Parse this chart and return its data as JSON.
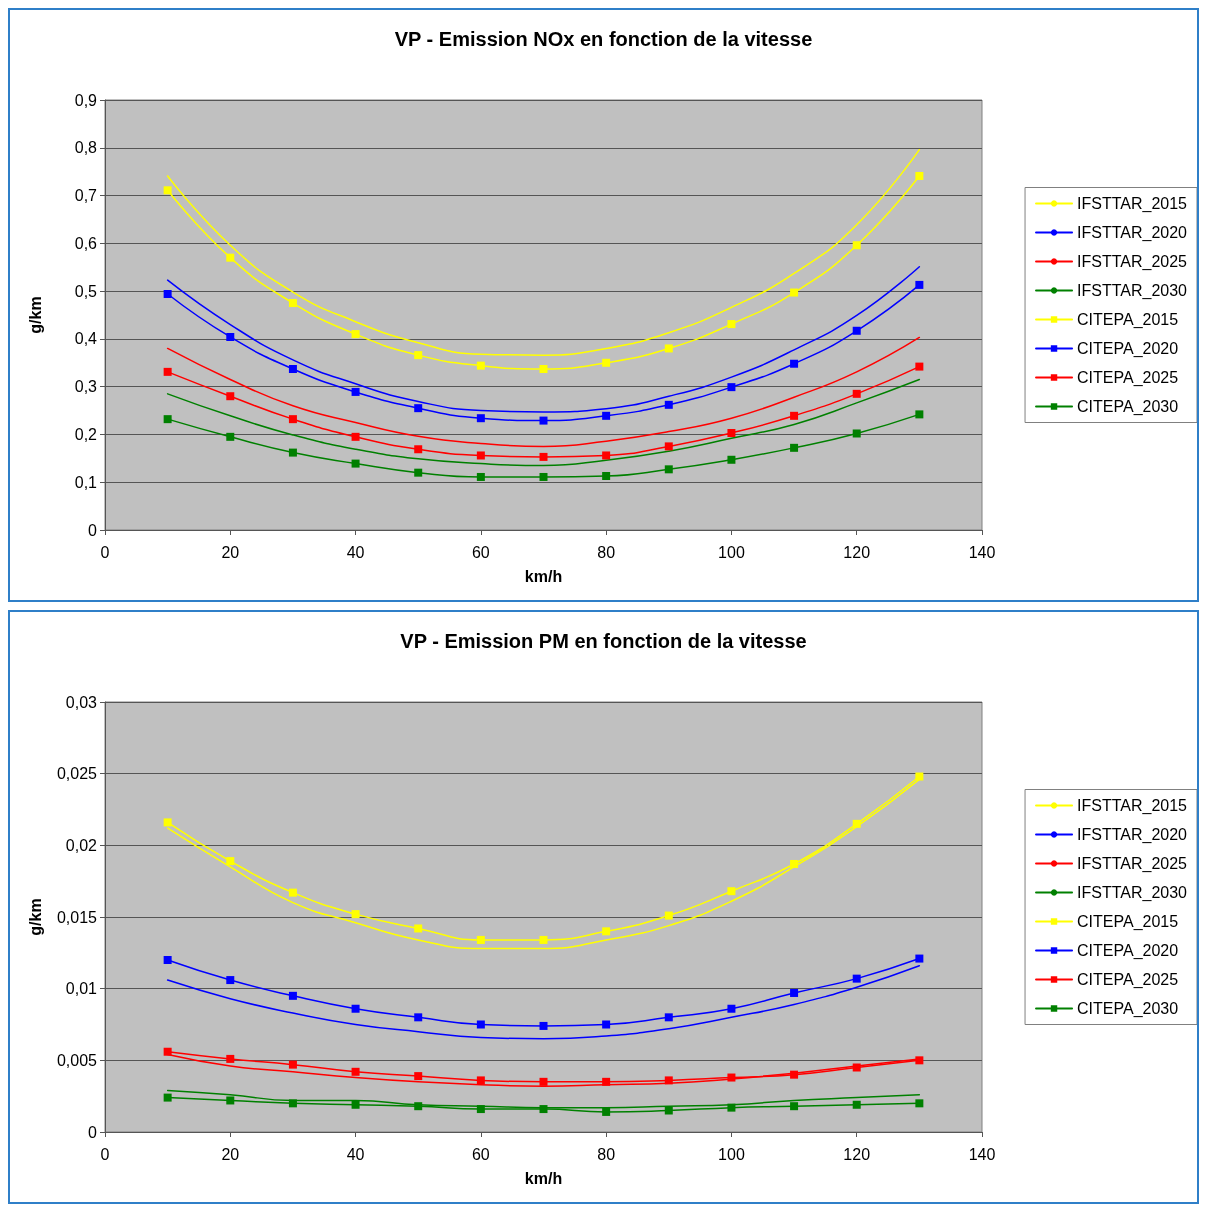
{
  "chart_data": [
    {
      "type": "line",
      "title": "VP - Emission NOx en fonction de la vitesse",
      "xlabel": "km/h",
      "ylabel": "g/km",
      "x": [
        10,
        20,
        30,
        40,
        50,
        60,
        70,
        80,
        90,
        100,
        110,
        120,
        130
      ],
      "xlim": [
        0,
        140
      ],
      "xticks": [
        0,
        20,
        40,
        60,
        80,
        100,
        120,
        140
      ],
      "ylim": [
        0,
        0.9
      ],
      "yticks": [
        0,
        {
          "value": 0.1,
          "label": "0,1"
        },
        {
          "value": 0.2,
          "label": "0,2"
        },
        {
          "value": 0.3,
          "label": "0,3"
        },
        {
          "value": 0.4,
          "label": "0,4"
        },
        {
          "value": 0.5,
          "label": "0,5"
        },
        {
          "value": 0.6,
          "label": "0,6"
        },
        {
          "value": 0.7,
          "label": "0,7"
        },
        {
          "value": 0.8,
          "label": "0,8"
        },
        {
          "value": 0.9,
          "label": "0,9"
        }
      ],
      "grid": "y",
      "legend": "right",
      "series": [
        {
          "name": "IFSTTAR_2015",
          "color": "#ffff00",
          "marker": "none",
          "values": [
            0.741,
            0.596,
            0.498,
            0.436,
            0.392,
            0.368,
            0.366,
            0.38,
            0.413,
            0.466,
            0.537,
            0.639,
            0.796
          ]
        },
        {
          "name": "IFSTTAR_2020",
          "color": "#0000ff",
          "marker": "none",
          "values": [
            0.523,
            0.43,
            0.356,
            0.306,
            0.269,
            0.25,
            0.247,
            0.254,
            0.28,
            0.32,
            0.377,
            0.449,
            0.551
          ]
        },
        {
          "name": "IFSTTAR_2025",
          "color": "#ff0000",
          "marker": "none",
          "values": [
            0.38,
            0.315,
            0.26,
            0.225,
            0.196,
            0.181,
            0.175,
            0.186,
            0.206,
            0.234,
            0.278,
            0.331,
            0.403
          ]
        },
        {
          "name": "IFSTTAR_2030",
          "color": "#008000",
          "marker": "none",
          "values": [
            0.285,
            0.239,
            0.199,
            0.169,
            0.149,
            0.139,
            0.135,
            0.146,
            0.165,
            0.192,
            0.221,
            0.266,
            0.315
          ]
        },
        {
          "name": "CITEPA_2015",
          "color": "#ffff00",
          "marker": "square",
          "values": [
            0.711,
            0.57,
            0.475,
            0.41,
            0.366,
            0.344,
            0.337,
            0.35,
            0.38,
            0.431,
            0.497,
            0.596,
            0.741
          ]
        },
        {
          "name": "CITEPA_2020",
          "color": "#0000ff",
          "marker": "square",
          "values": [
            0.494,
            0.404,
            0.337,
            0.289,
            0.255,
            0.234,
            0.229,
            0.239,
            0.262,
            0.299,
            0.348,
            0.417,
            0.513
          ]
        },
        {
          "name": "CITEPA_2025",
          "color": "#ff0000",
          "marker": "square",
          "values": [
            0.331,
            0.28,
            0.232,
            0.195,
            0.169,
            0.156,
            0.153,
            0.156,
            0.175,
            0.203,
            0.239,
            0.285,
            0.342
          ]
        },
        {
          "name": "CITEPA_2030",
          "color": "#008000",
          "marker": "square",
          "values": [
            0.232,
            0.195,
            0.162,
            0.139,
            0.12,
            0.111,
            0.111,
            0.113,
            0.127,
            0.147,
            0.172,
            0.202,
            0.242
          ]
        }
      ]
    },
    {
      "type": "line",
      "title": "VP - Emission PM en fonction de la vitesse",
      "xlabel": "km/h",
      "ylabel": "g/km",
      "x": [
        10,
        20,
        30,
        40,
        50,
        60,
        70,
        80,
        90,
        100,
        110,
        120,
        130
      ],
      "xlim": [
        0,
        140
      ],
      "xticks": [
        0,
        20,
        40,
        60,
        80,
        100,
        120,
        140
      ],
      "ylim": [
        0,
        0.03
      ],
      "yticks": [
        0,
        {
          "value": 0.005,
          "label": "0,005"
        },
        {
          "value": 0.01,
          "label": "0,01"
        },
        {
          "value": 0.015,
          "label": "0,015"
        },
        {
          "value": 0.02,
          "label": "0,02"
        },
        {
          "value": 0.025,
          "label": "0,025"
        },
        {
          "value": 0.03,
          "label": "0,03"
        }
      ],
      "grid": "y",
      "legend": "right",
      "series": [
        {
          "name": "IFSTTAR_2015",
          "color": "#ffff00",
          "marker": "none",
          "values": [
            0.0212,
            0.0185,
            0.016,
            0.0146,
            0.0134,
            0.0128,
            0.0128,
            0.0134,
            0.0144,
            0.0161,
            0.0185,
            0.0213,
            0.0246
          ]
        },
        {
          "name": "IFSTTAR_2020",
          "color": "#0000ff",
          "marker": "none",
          "values": [
            0.0106,
            0.0093,
            0.0083,
            0.0075,
            0.007,
            0.0066,
            0.0065,
            0.0067,
            0.0072,
            0.008,
            0.0089,
            0.0101,
            0.0116
          ]
        },
        {
          "name": "IFSTTAR_2025",
          "color": "#ff0000",
          "marker": "none",
          "values": [
            0.0054,
            0.0046,
            0.0042,
            0.0038,
            0.0035,
            0.0033,
            0.0032,
            0.0033,
            0.0034,
            0.0037,
            0.0041,
            0.0046,
            0.0051
          ]
        },
        {
          "name": "IFSTTAR_2030",
          "color": "#008000",
          "marker": "none",
          "values": [
            0.0029,
            0.0026,
            0.0022,
            0.0022,
            0.0019,
            0.0018,
            0.0017,
            0.0017,
            0.0018,
            0.0019,
            0.0022,
            0.0024,
            0.0026
          ]
        },
        {
          "name": "CITEPA_2015",
          "color": "#ffff00",
          "marker": "square",
          "values": [
            0.0216,
            0.0189,
            0.0167,
            0.0152,
            0.0142,
            0.0134,
            0.0134,
            0.014,
            0.0151,
            0.0168,
            0.0187,
            0.0215,
            0.0248
          ]
        },
        {
          "name": "CITEPA_2020",
          "color": "#0000ff",
          "marker": "square",
          "values": [
            0.012,
            0.0106,
            0.0095,
            0.0086,
            0.008,
            0.0075,
            0.0074,
            0.0075,
            0.008,
            0.0086,
            0.0097,
            0.0107,
            0.0121
          ]
        },
        {
          "name": "CITEPA_2025",
          "color": "#ff0000",
          "marker": "square",
          "values": [
            0.0056,
            0.0051,
            0.0047,
            0.0042,
            0.0039,
            0.0036,
            0.0035,
            0.0035,
            0.0036,
            0.0038,
            0.004,
            0.0045,
            0.005
          ]
        },
        {
          "name": "CITEPA_2030",
          "color": "#008000",
          "marker": "square",
          "values": [
            0.0024,
            0.0022,
            0.002,
            0.0019,
            0.0018,
            0.0016,
            0.0016,
            0.0014,
            0.0015,
            0.0017,
            0.0018,
            0.0019,
            0.002
          ]
        }
      ]
    }
  ]
}
